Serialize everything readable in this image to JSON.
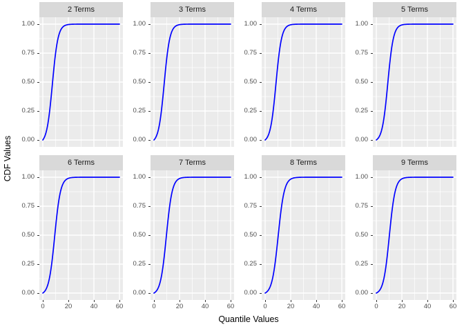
{
  "chart_data": {
    "type": "line",
    "title": "",
    "xlabel": "Quantile Values",
    "ylabel": "CDF Values",
    "xlim": [
      0,
      60
    ],
    "ylim": [
      0,
      1
    ],
    "grid": "white major and minor gridlines on gray panel",
    "legend": "none",
    "layout": {
      "rows": 2,
      "cols": 4,
      "style": "ggplot2 facet grid, free y-axis labels per panel, x-axis labels on bottom row only"
    },
    "colors": {
      "line": "#0000FF",
      "panel_background": "#EBEBEB",
      "strip_background": "#D9D9D9",
      "strip_text": "#1A1A1A",
      "tick_text": "#4D4D4D",
      "axis_title_text": "#000000",
      "gridline": "#FFFFFF",
      "tick_mark": "#333333"
    },
    "x_ticks": [
      {
        "label": "0",
        "value": 0
      },
      {
        "label": "20",
        "value": 20
      },
      {
        "label": "40",
        "value": 40
      },
      {
        "label": "60",
        "value": 60
      }
    ],
    "x_minor": [
      10,
      30,
      50
    ],
    "y_ticks": [
      {
        "label": "1.00",
        "value": 1.0
      },
      {
        "label": "0.75",
        "value": 0.75
      },
      {
        "label": "0.50",
        "value": 0.5
      },
      {
        "label": "0.25",
        "value": 0.25
      },
      {
        "label": "0.00",
        "value": 0.0
      }
    ],
    "y_minor": [
      0.875,
      0.625,
      0.375,
      0.125
    ],
    "facets": [
      {
        "label": "2 Terms",
        "curve": {
          "midpoint": 7.5,
          "spread": 2.2
        },
        "points": [
          [
            0,
            0
          ],
          [
            5,
            0.218
          ],
          [
            10,
            0.749
          ],
          [
            15,
            0.967
          ],
          [
            20,
            0.996
          ],
          [
            25,
            1.0
          ],
          [
            30,
            1.0
          ],
          [
            40,
            1.0
          ],
          [
            50,
            1.0
          ],
          [
            60,
            1.0
          ]
        ]
      },
      {
        "label": "3 Terms",
        "curve": {
          "midpoint": 8.0,
          "spread": 2.2
        },
        "points": [
          [
            0,
            0
          ],
          [
            5,
            0.183
          ],
          [
            10,
            0.705
          ],
          [
            15,
            0.959
          ],
          [
            20,
            0.996
          ],
          [
            25,
            0.999
          ],
          [
            30,
            1.0
          ],
          [
            40,
            1.0
          ],
          [
            50,
            1.0
          ],
          [
            60,
            1.0
          ]
        ]
      },
      {
        "label": "4 Terms",
        "curve": {
          "midpoint": 8.5,
          "spread": 2.2
        },
        "points": [
          [
            0,
            0
          ],
          [
            5,
            0.152
          ],
          [
            10,
            0.657
          ],
          [
            15,
            0.949
          ],
          [
            20,
            0.995
          ],
          [
            25,
            0.999
          ],
          [
            30,
            1.0
          ],
          [
            40,
            1.0
          ],
          [
            50,
            1.0
          ],
          [
            60,
            1.0
          ]
        ]
      },
      {
        "label": "5 Terms",
        "curve": {
          "midpoint": 9.0,
          "spread": 2.2
        },
        "points": [
          [
            0,
            0
          ],
          [
            5,
            0.125
          ],
          [
            10,
            0.605
          ],
          [
            15,
            0.938
          ],
          [
            20,
            0.993
          ],
          [
            25,
            0.999
          ],
          [
            30,
            1.0
          ],
          [
            40,
            1.0
          ],
          [
            50,
            1.0
          ],
          [
            60,
            1.0
          ]
        ]
      },
      {
        "label": "6 Terms",
        "curve": {
          "midpoint": 9.3,
          "spread": 2.3
        },
        "points": [
          [
            0,
            0
          ],
          [
            5,
            0.118
          ],
          [
            10,
            0.568
          ],
          [
            15,
            0.921
          ],
          [
            20,
            0.99
          ],
          [
            25,
            0.999
          ],
          [
            30,
            1.0
          ],
          [
            40,
            1.0
          ],
          [
            50,
            1.0
          ],
          [
            60,
            1.0
          ]
        ]
      },
      {
        "label": "7 Terms",
        "curve": {
          "midpoint": 9.7,
          "spread": 2.3
        },
        "points": [
          [
            0,
            0
          ],
          [
            5,
            0.102
          ],
          [
            10,
            0.526
          ],
          [
            15,
            0.908
          ],
          [
            20,
            0.989
          ],
          [
            25,
            0.999
          ],
          [
            30,
            1.0
          ],
          [
            40,
            1.0
          ],
          [
            50,
            1.0
          ],
          [
            60,
            1.0
          ]
        ]
      },
      {
        "label": "8 Terms",
        "curve": {
          "midpoint": 10.2,
          "spread": 2.4
        },
        "points": [
          [
            0,
            0
          ],
          [
            5,
            0.09
          ],
          [
            10,
            0.472
          ],
          [
            15,
            0.879
          ],
          [
            20,
            0.983
          ],
          [
            25,
            0.998
          ],
          [
            30,
            1.0
          ],
          [
            40,
            1.0
          ],
          [
            50,
            1.0
          ],
          [
            60,
            1.0
          ]
        ]
      },
      {
        "label": "9 Terms",
        "curve": {
          "midpoint": 10.2,
          "spread": 2.3
        },
        "points": [
          [
            0,
            0
          ],
          [
            5,
            0.084
          ],
          [
            10,
            0.472
          ],
          [
            15,
            0.888
          ],
          [
            20,
            0.986
          ],
          [
            25,
            0.998
          ],
          [
            30,
            1.0
          ],
          [
            40,
            1.0
          ],
          [
            50,
            1.0
          ],
          [
            60,
            1.0
          ]
        ]
      }
    ]
  }
}
